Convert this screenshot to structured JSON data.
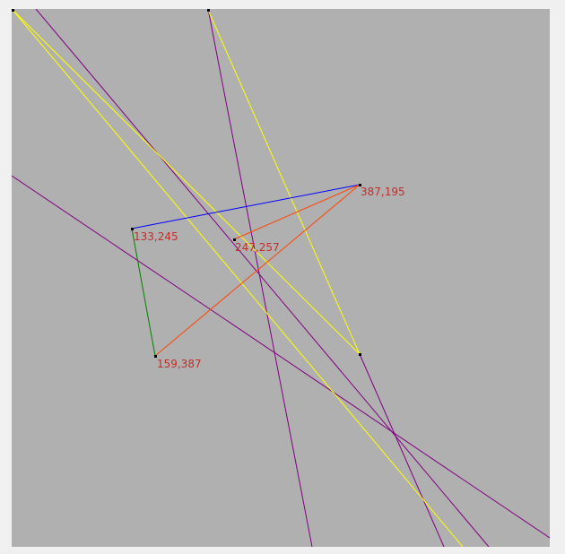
{
  "canvas": {
    "background": "#b0b0b0",
    "window_background": "#f0f0f0"
  },
  "colors": {
    "label": "#c0302a",
    "point": "#000000",
    "blue_edge": "#0000ff",
    "green_edge": "#008000",
    "orange_edge": "#ff4500",
    "yellow_line": "#ffff00",
    "purple_line": "#800080"
  },
  "points": [
    {
      "id": "p1",
      "label": "133,245"
    },
    {
      "id": "p2",
      "label": "247,257"
    },
    {
      "id": "p3",
      "label": "387,195"
    },
    {
      "id": "p4",
      "label": "159,387"
    }
  ]
}
